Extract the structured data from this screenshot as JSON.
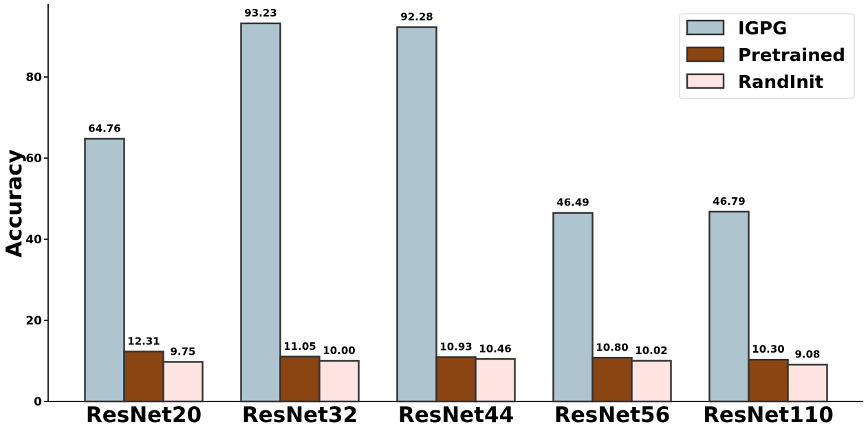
{
  "chart_data": {
    "type": "bar",
    "title": "",
    "xlabel": "",
    "ylabel": "Accuracy",
    "ylim": [
      0,
      98
    ],
    "yticks": [
      0,
      20,
      40,
      60,
      80
    ],
    "categories": [
      "ResNet20",
      "ResNet32",
      "ResNet44",
      "ResNet56",
      "ResNet110"
    ],
    "series": [
      {
        "name": "IGPG",
        "color": "#aec5cf",
        "values": [
          64.76,
          93.23,
          92.28,
          46.49,
          46.79
        ],
        "labels": [
          "64.76",
          "93.23",
          "92.28",
          "46.49",
          "46.79"
        ]
      },
      {
        "name": "Pretrained",
        "color": "#8b4513",
        "values": [
          12.31,
          11.05,
          10.93,
          10.8,
          10.3
        ],
        "labels": [
          "12.31",
          "11.05",
          "10.93",
          "10.80",
          "10.30"
        ]
      },
      {
        "name": "RandInit",
        "color": "#ffe4e1",
        "values": [
          9.75,
          10.0,
          10.46,
          10.02,
          9.08
        ],
        "labels": [
          "9.75",
          "10.00",
          "10.46",
          "10.02",
          "9.08"
        ]
      }
    ],
    "legend": {
      "position": "top-right"
    },
    "grid": false
  }
}
